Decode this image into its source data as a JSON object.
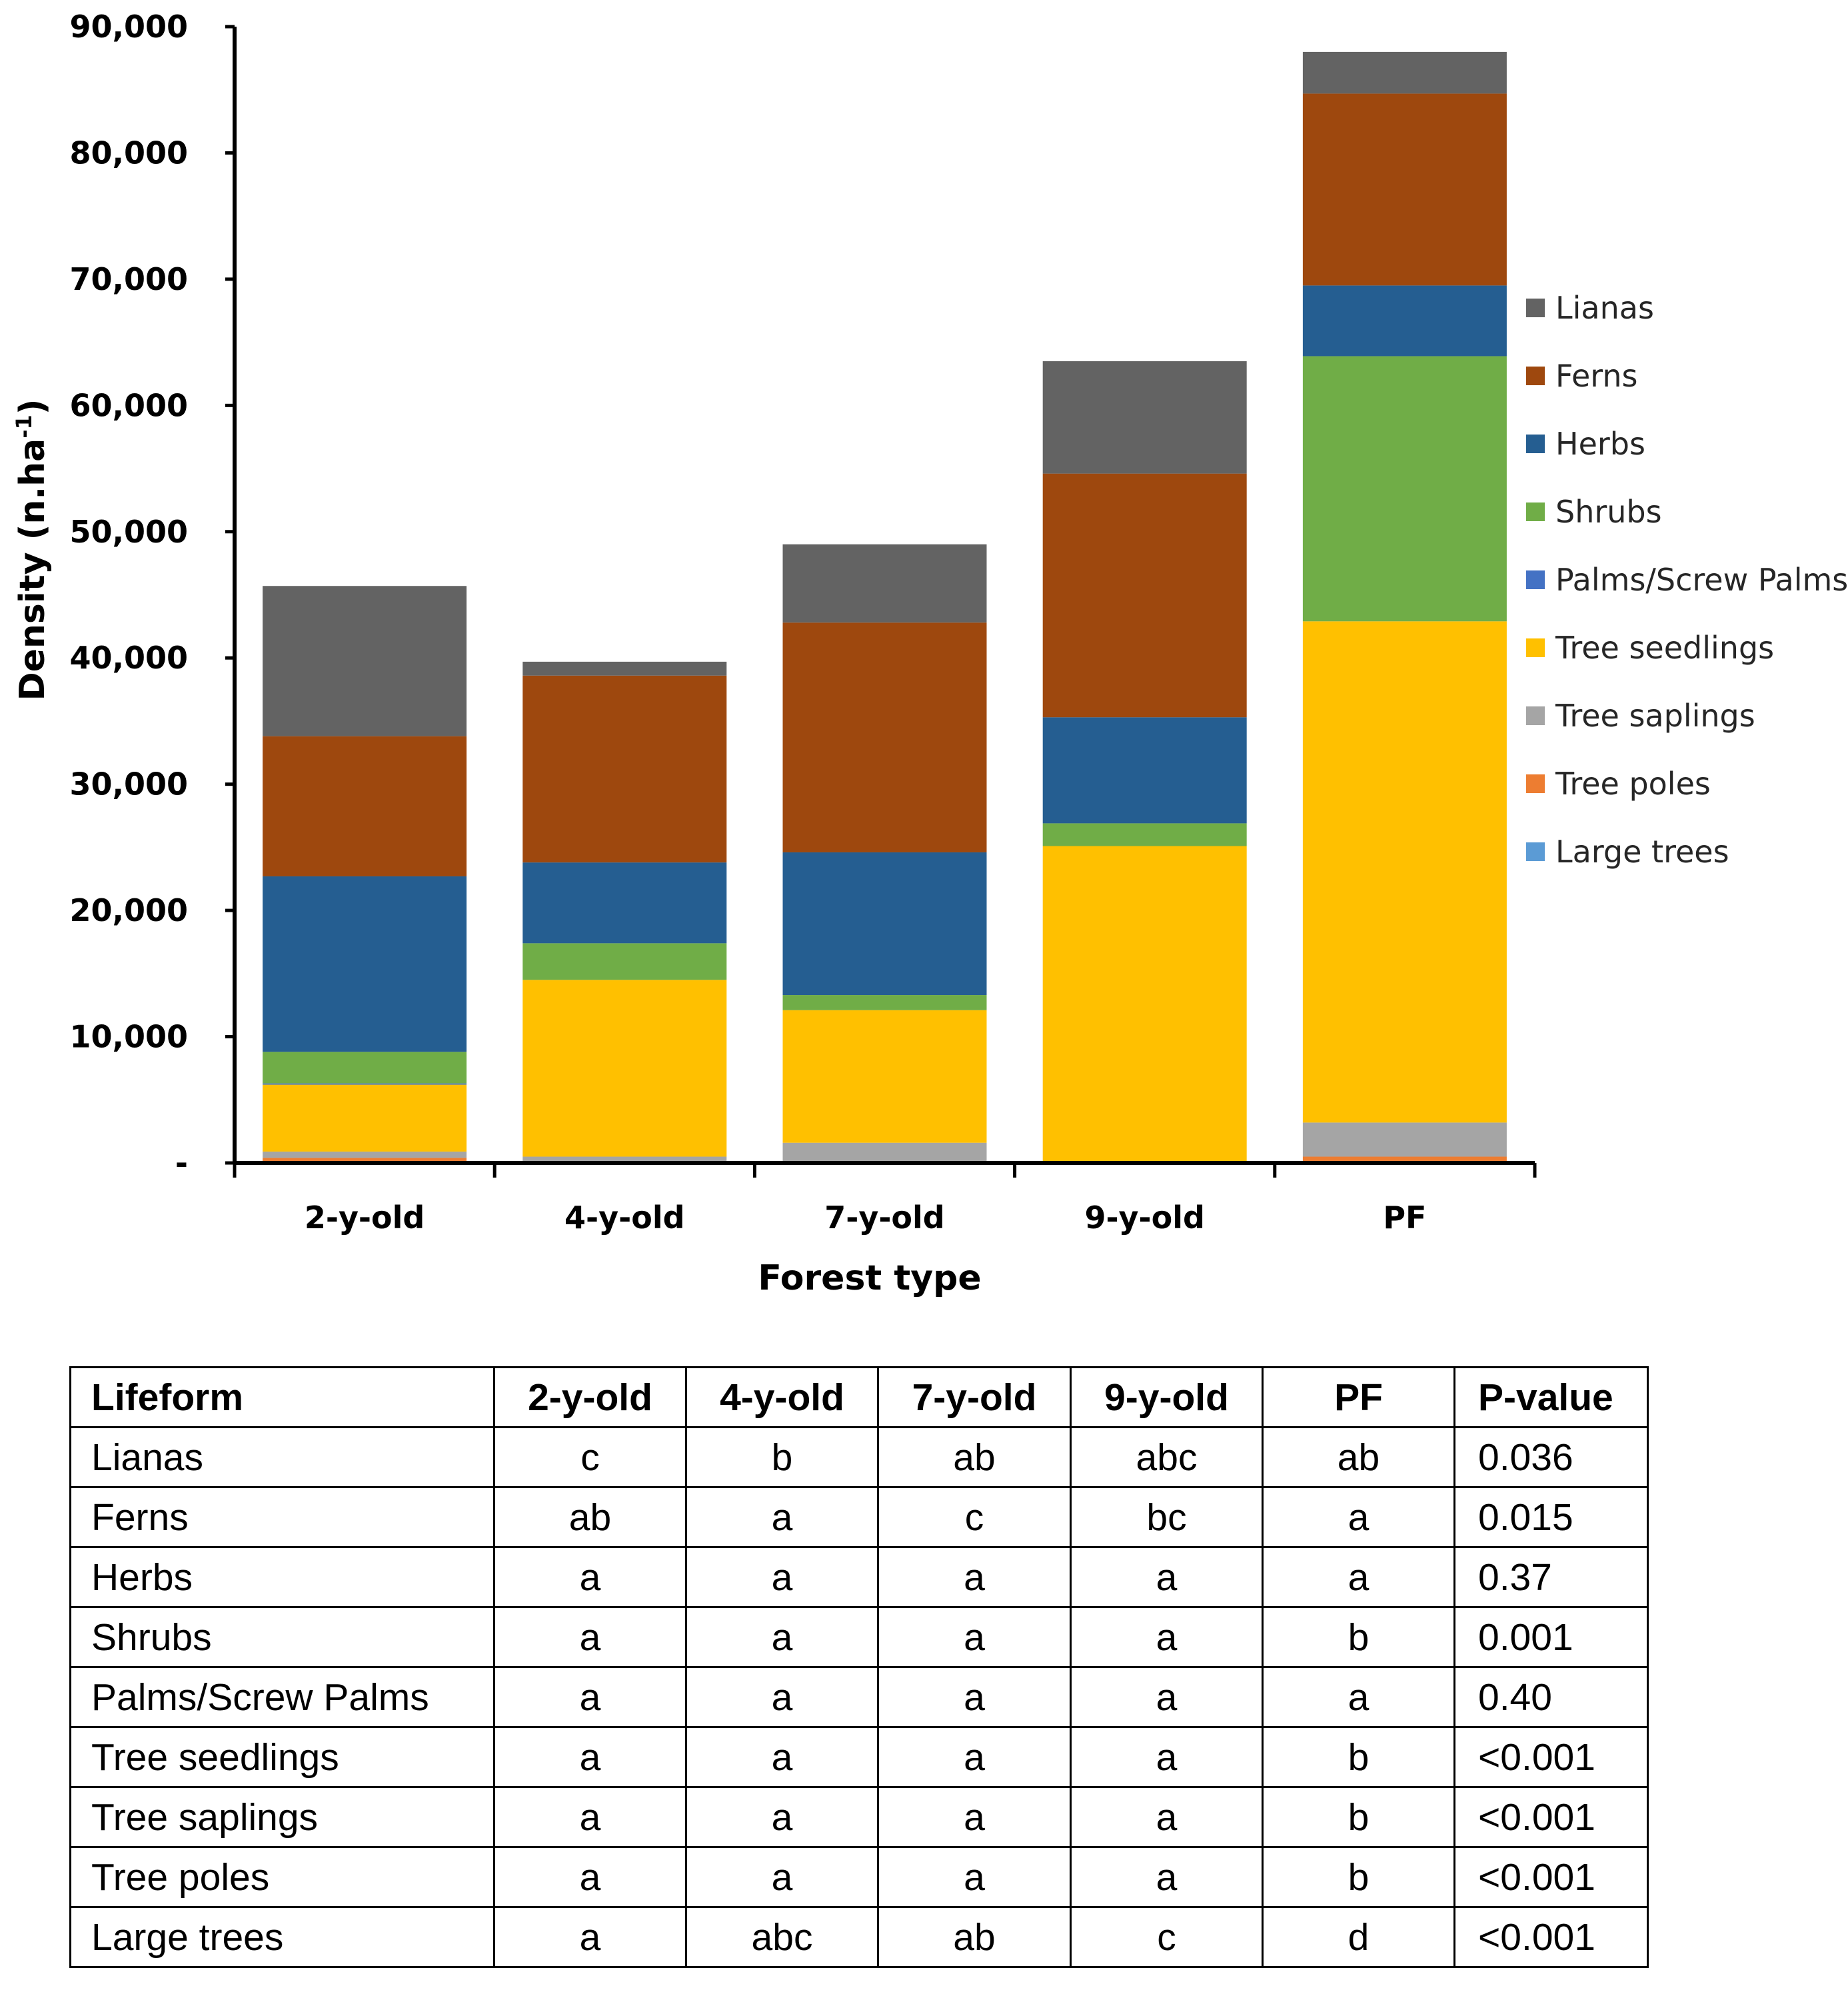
{
  "chart_data": {
    "type": "bar",
    "stacked": true,
    "xlabel": "Forest type",
    "ylabel": "Density (n.ha-1)",
    "ylabel_parts": {
      "main": "Density (n.ha",
      "superscript": "-1",
      "close": ")"
    },
    "ylim": [
      0,
      90000
    ],
    "yticks": [
      0,
      10000,
      20000,
      30000,
      40000,
      50000,
      60000,
      70000,
      80000,
      90000
    ],
    "ytick_labels": [
      "-",
      "10,000",
      "20,000",
      "30,000",
      "40,000",
      "50,000",
      "60,000",
      "70,000",
      "80,000",
      "90,000"
    ],
    "categories": [
      "2-y-old",
      "4-y-old",
      "7-y-old",
      "9-y-old",
      "PF"
    ],
    "legend_position": "right",
    "series": [
      {
        "name": "Large trees",
        "color": "#5B9BD5",
        "values": [
          100,
          0,
          0,
          0,
          100
        ]
      },
      {
        "name": "Tree poles",
        "color": "#ED7D31",
        "values": [
          300,
          100,
          100,
          0,
          400
        ]
      },
      {
        "name": "Tree saplings",
        "color": "#A5A5A5",
        "values": [
          500,
          400,
          1500,
          100,
          2700
        ]
      },
      {
        "name": "Tree seedlings",
        "color": "#FFC000",
        "values": [
          5300,
          14000,
          10500,
          25000,
          39700
        ]
      },
      {
        "name": "Palms/Screw Palms",
        "color": "#4472C4",
        "values": [
          100,
          0,
          0,
          0,
          0
        ]
      },
      {
        "name": "Shrubs",
        "color": "#70AD47",
        "values": [
          2500,
          2900,
          1200,
          1800,
          21000
        ]
      },
      {
        "name": "Herbs",
        "color": "#255E91",
        "values": [
          13900,
          6400,
          11300,
          8400,
          5600
        ]
      },
      {
        "name": "Ferns",
        "color": "#9E480E",
        "values": [
          11100,
          14800,
          18200,
          19300,
          15200
        ]
      },
      {
        "name": "Lianas",
        "color": "#636363",
        "values": [
          11900,
          1100,
          6200,
          8900,
          3300
        ]
      }
    ],
    "legend_order": [
      "Lianas",
      "Ferns",
      "Herbs",
      "Shrubs",
      "Palms/Screw Palms",
      "Tree seedlings",
      "Tree saplings",
      "Tree poles",
      "Large trees"
    ]
  },
  "table": {
    "headers": [
      "Lifeform",
      "2-y-old",
      "4-y-old",
      "7-y-old",
      "9-y-old",
      "PF",
      "P-value"
    ],
    "rows": [
      [
        "Lianas",
        "c",
        "b",
        "ab",
        "abc",
        "ab",
        "0.036"
      ],
      [
        "Ferns",
        "ab",
        "a",
        "c",
        "bc",
        "a",
        "0.015"
      ],
      [
        "Herbs",
        "a",
        "a",
        "a",
        "a",
        "a",
        "0.37"
      ],
      [
        "Shrubs",
        "a",
        "a",
        "a",
        "a",
        "b",
        "0.001"
      ],
      [
        "Palms/Screw Palms",
        "a",
        "a",
        "a",
        "a",
        "a",
        "0.40"
      ],
      [
        "Tree seedlings",
        "a",
        "a",
        "a",
        "a",
        "b",
        "<0.001"
      ],
      [
        "Tree saplings",
        "a",
        "a",
        "a",
        "a",
        "b",
        "<0.001"
      ],
      [
        "Tree poles",
        "a",
        "a",
        "a",
        "a",
        "b",
        "<0.001"
      ],
      [
        "Large trees",
        "a",
        "abc",
        "ab",
        "c",
        "d",
        "<0.001"
      ]
    ]
  }
}
